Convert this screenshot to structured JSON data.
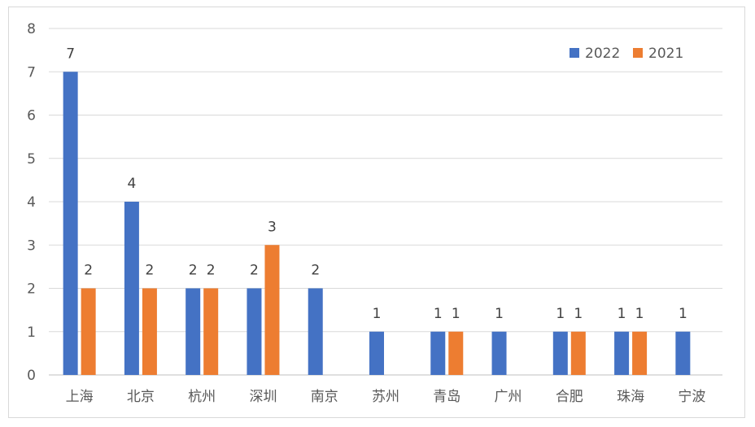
{
  "chart_data": {
    "type": "bar",
    "categories": [
      "上海",
      "北京",
      "杭州",
      "深圳",
      "南京",
      "苏州",
      "青岛",
      "广州",
      "合肥",
      "珠海",
      "宁波"
    ],
    "series": [
      {
        "name": "2022",
        "color": "#4472C4",
        "values": [
          7,
          4,
          2,
          2,
          2,
          1,
          1,
          1,
          1,
          1,
          1
        ]
      },
      {
        "name": "2021",
        "color": "#ED7D31",
        "values": [
          2,
          2,
          2,
          3,
          null,
          null,
          1,
          null,
          1,
          1,
          null
        ]
      }
    ],
    "ylim": [
      0,
      8
    ],
    "yticks": [
      0,
      1,
      2,
      3,
      4,
      5,
      6,
      7,
      8
    ],
    "grid": true,
    "legend": "top-right",
    "data_labels": true,
    "title": "",
    "xlabel": "",
    "ylabel": ""
  }
}
